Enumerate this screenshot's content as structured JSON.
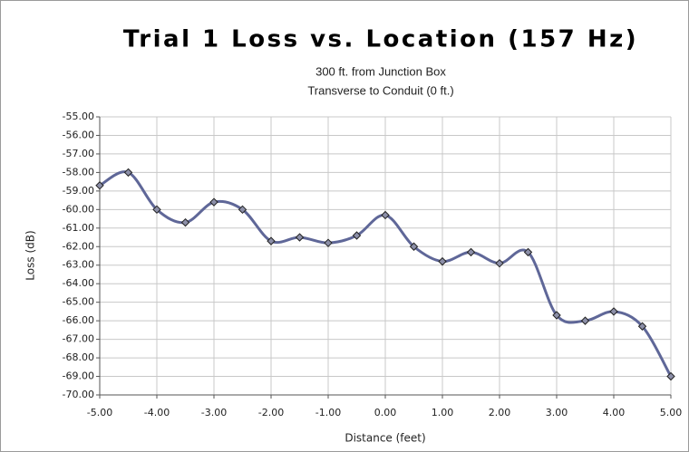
{
  "chart_data": {
    "type": "line",
    "title": "Trial 1 Loss vs. Location (157 Hz)",
    "subtitle": [
      "300 ft. from Junction Box",
      "Transverse to Conduit (0 ft.)"
    ],
    "x_label": "Distance (feet)",
    "y_label": "Loss (dB)",
    "x": [
      -5,
      -4.5,
      -4,
      -3.5,
      -3,
      -2.5,
      -2,
      -1.5,
      -1,
      -0.5,
      0,
      0.5,
      1,
      1.5,
      2,
      2.5,
      3,
      3.5,
      4,
      4.5,
      5
    ],
    "series": [
      {
        "name": "Loss",
        "color": "#5f6798",
        "values": [
          -58.7,
          -58.0,
          -60.0,
          -60.7,
          -59.6,
          -60.0,
          -61.7,
          -61.5,
          -61.8,
          -61.4,
          -60.3,
          -62.0,
          -62.8,
          -62.3,
          -62.9,
          -62.3,
          -65.7,
          -66.0,
          -65.5,
          -66.3,
          -69.0
        ]
      }
    ],
    "xlim": [
      -5,
      5
    ],
    "ylim": [
      -70,
      -55
    ],
    "xticks": [
      {
        "value": -5,
        "label": "-5.00"
      },
      {
        "value": -4,
        "label": "-4.00"
      },
      {
        "value": -3,
        "label": "-3.00"
      },
      {
        "value": -2,
        "label": "-2.00"
      },
      {
        "value": -1,
        "label": "-1.00"
      },
      {
        "value": 0,
        "label": "0.00"
      },
      {
        "value": 1,
        "label": "1.00"
      },
      {
        "value": 2,
        "label": "2.00"
      },
      {
        "value": 3,
        "label": "3.00"
      },
      {
        "value": 4,
        "label": "4.00"
      },
      {
        "value": 5,
        "label": "5.00"
      }
    ],
    "yticks": [
      {
        "value": -55,
        "label": "-55.00"
      },
      {
        "value": -56,
        "label": "-56.00"
      },
      {
        "value": -57,
        "label": "-57.00"
      },
      {
        "value": -58,
        "label": "-58.00"
      },
      {
        "value": -59,
        "label": "-59.00"
      },
      {
        "value": -60,
        "label": "-60.00"
      },
      {
        "value": -61,
        "label": "-61.00"
      },
      {
        "value": -62,
        "label": "-62.00"
      },
      {
        "value": -63,
        "label": "-63.00"
      },
      {
        "value": -64,
        "label": "-64.00"
      },
      {
        "value": -65,
        "label": "-65.00"
      },
      {
        "value": -66,
        "label": "-66.00"
      },
      {
        "value": -67,
        "label": "-67.00"
      },
      {
        "value": -68,
        "label": "-68.00"
      },
      {
        "value": -69,
        "label": "-69.00"
      },
      {
        "value": -70,
        "label": "-70.00"
      }
    ],
    "grid": true
  }
}
